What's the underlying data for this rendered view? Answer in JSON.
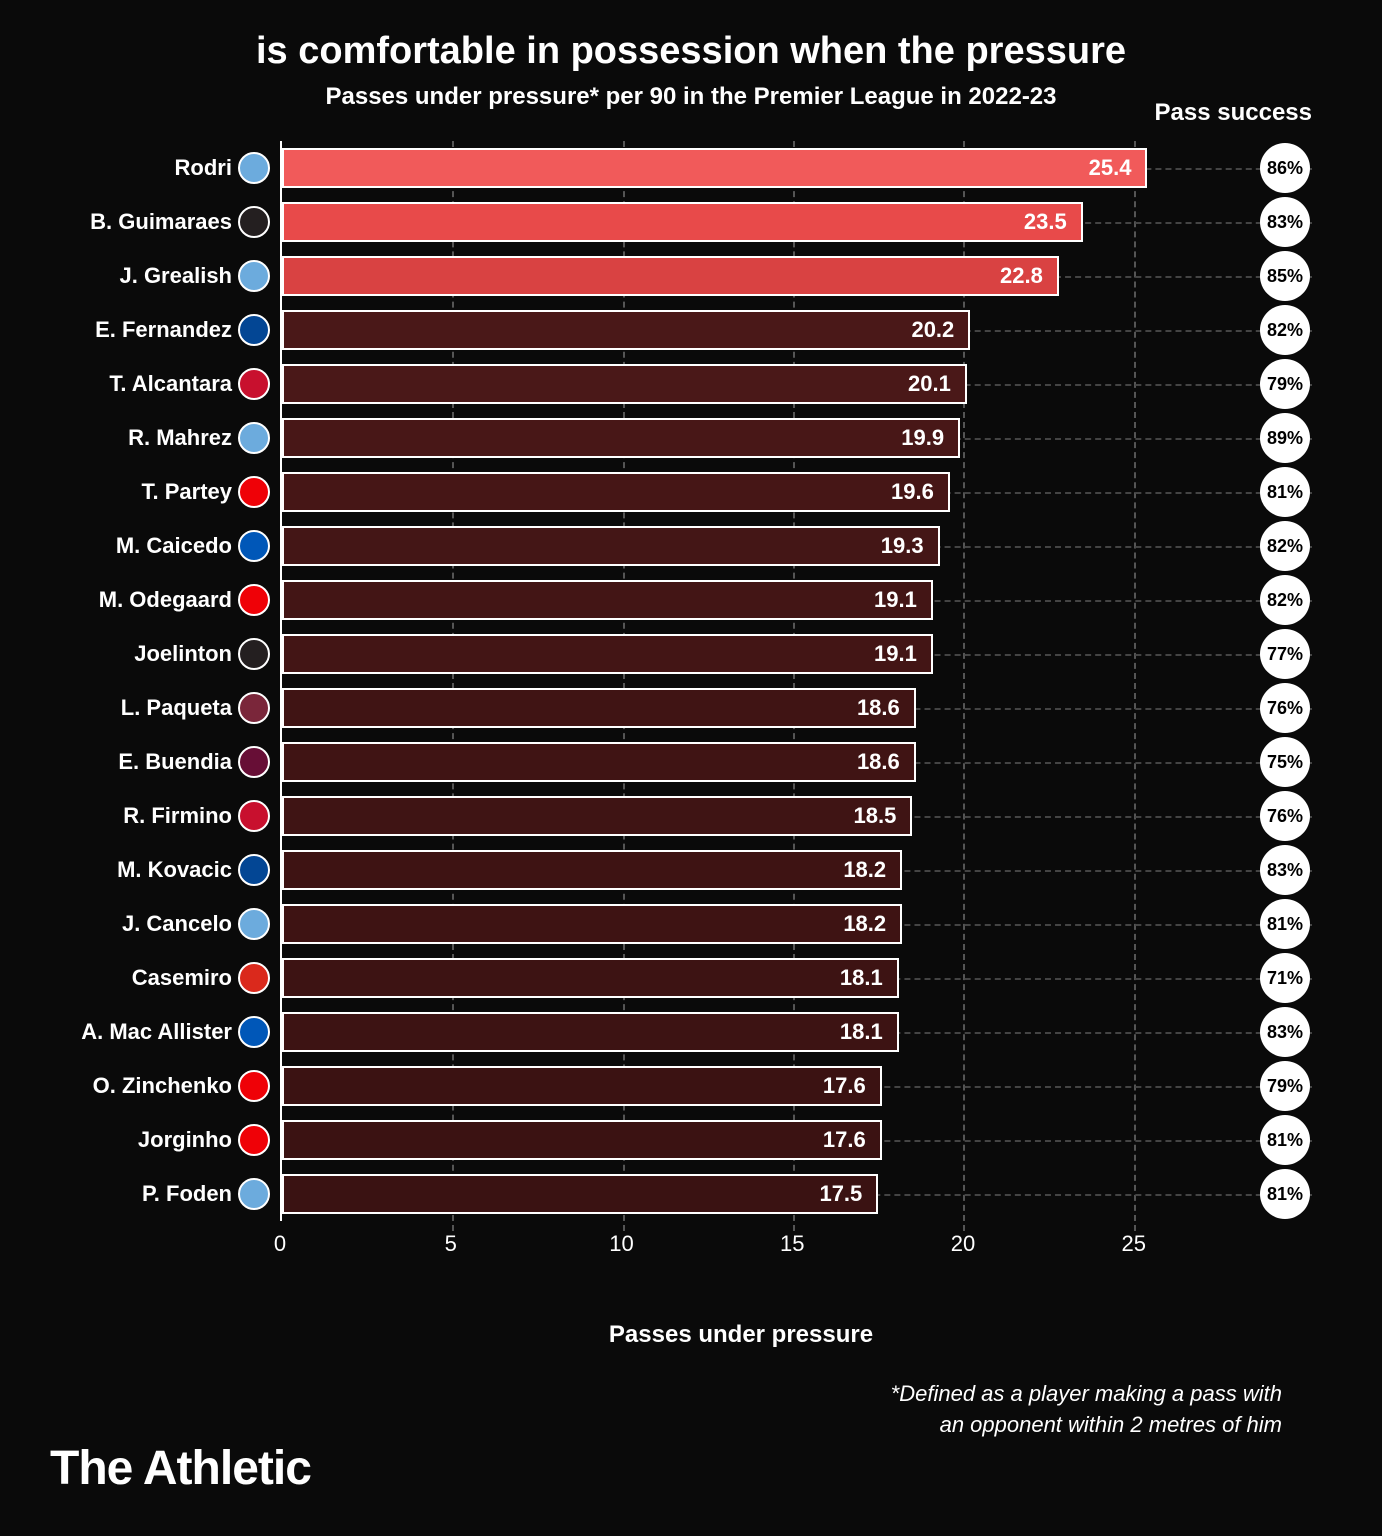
{
  "chart": {
    "type": "horizontal-bar",
    "title": "is comfortable in possession when the pressure",
    "subtitle": "Passes under pressure* per 90 in the Premier League in 2022-23",
    "pass_success_header": "Pass success",
    "x_label": "Passes under pressure",
    "x_ticks": [
      0,
      5,
      10,
      15,
      20,
      25
    ],
    "x_max": 27,
    "footnote_line1": "*Defined as a player making a pass with",
    "footnote_line2": "an opponent within 2 metres of him",
    "brand": "The Athletic",
    "background_color": "#0a0a0a",
    "grid_color": "#555555",
    "bar_border_color": "#ffffff",
    "highlight_color": "#f15a5a",
    "normal_bar_color": "#3b1515",
    "title_fontsize": 38,
    "subtitle_fontsize": 24,
    "label_fontsize": 22,
    "team_colors": {
      "mci": "#6cabdd",
      "new": "#241f20",
      "che": "#034694",
      "liv": "#c8102e",
      "ars": "#ef0107",
      "bha": "#0057b8",
      "whu": "#7a263a",
      "avl": "#670e36",
      "mun": "#da291c"
    },
    "players": [
      {
        "name": "Rodri",
        "team": "mci",
        "value": 25.4,
        "success": "86%",
        "highlight": true,
        "color": "#f15a5a"
      },
      {
        "name": "B. Guimaraes",
        "team": "new",
        "value": 23.5,
        "success": "83%",
        "highlight": true,
        "color": "#e84a4a"
      },
      {
        "name": "J. Grealish",
        "team": "mci",
        "value": 22.8,
        "success": "85%",
        "highlight": true,
        "color": "#d94242"
      },
      {
        "name": "E. Fernandez",
        "team": "che",
        "value": 20.2,
        "success": "82%",
        "highlight": false,
        "color": "#4a1818"
      },
      {
        "name": "T. Alcantara",
        "team": "liv",
        "value": 20.1,
        "success": "79%",
        "highlight": false,
        "color": "#4a1818"
      },
      {
        "name": "R. Mahrez",
        "team": "mci",
        "value": 19.9,
        "success": "89%",
        "highlight": false,
        "color": "#481717"
      },
      {
        "name": "T. Partey",
        "team": "ars",
        "value": 19.6,
        "success": "81%",
        "highlight": false,
        "color": "#461616"
      },
      {
        "name": "M. Caicedo",
        "team": "bha",
        "value": 19.3,
        "success": "82%",
        "highlight": false,
        "color": "#441616"
      },
      {
        "name": "M. Odegaard",
        "team": "ars",
        "value": 19.1,
        "success": "82%",
        "highlight": false,
        "color": "#431515"
      },
      {
        "name": "Joelinton",
        "team": "new",
        "value": 19.1,
        "success": "77%",
        "highlight": false,
        "color": "#431515"
      },
      {
        "name": "L. Paqueta",
        "team": "whu",
        "value": 18.6,
        "success": "76%",
        "highlight": false,
        "color": "#401414"
      },
      {
        "name": "E. Buendia",
        "team": "avl",
        "value": 18.6,
        "success": "75%",
        "highlight": false,
        "color": "#401414"
      },
      {
        "name": "R. Firmino",
        "team": "liv",
        "value": 18.5,
        "success": "76%",
        "highlight": false,
        "color": "#3f1414"
      },
      {
        "name": "M. Kovacic",
        "team": "che",
        "value": 18.2,
        "success": "83%",
        "highlight": false,
        "color": "#3e1313"
      },
      {
        "name": "J. Cancelo",
        "team": "mci",
        "value": 18.2,
        "success": "81%",
        "highlight": false,
        "color": "#3e1313"
      },
      {
        "name": "Casemiro",
        "team": "mun",
        "value": 18.1,
        "success": "71%",
        "highlight": false,
        "color": "#3d1313"
      },
      {
        "name": "A. Mac Allister",
        "team": "bha",
        "value": 18.1,
        "success": "83%",
        "highlight": false,
        "color": "#3d1313"
      },
      {
        "name": "O. Zinchenko",
        "team": "ars",
        "value": 17.6,
        "success": "79%",
        "highlight": false,
        "color": "#3b1212"
      },
      {
        "name": "Jorginho",
        "team": "ars",
        "value": 17.6,
        "success": "81%",
        "highlight": false,
        "color": "#3b1212"
      },
      {
        "name": "P. Foden",
        "team": "mci",
        "value": 17.5,
        "success": "81%",
        "highlight": false,
        "color": "#3a1212"
      }
    ]
  }
}
